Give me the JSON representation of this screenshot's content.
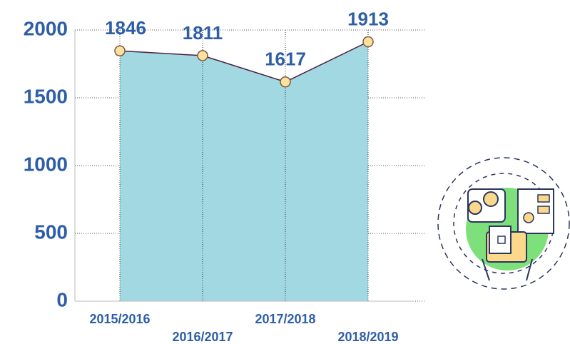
{
  "chart_data": {
    "type": "area",
    "categories": [
      "2015/2016",
      "2016/2017",
      "2017/2018",
      "2018/2019"
    ],
    "values": [
      1846,
      1811,
      1617,
      1913
    ],
    "color": "#a2d8e2",
    "line_color": "#4a2040",
    "marker_color": "#fde1a0",
    "text_color": "#2e5ea8",
    "ylim": [
      0,
      2000
    ],
    "yticks": [
      0,
      500,
      1000,
      1500,
      2000
    ],
    "grid": true
  }
}
